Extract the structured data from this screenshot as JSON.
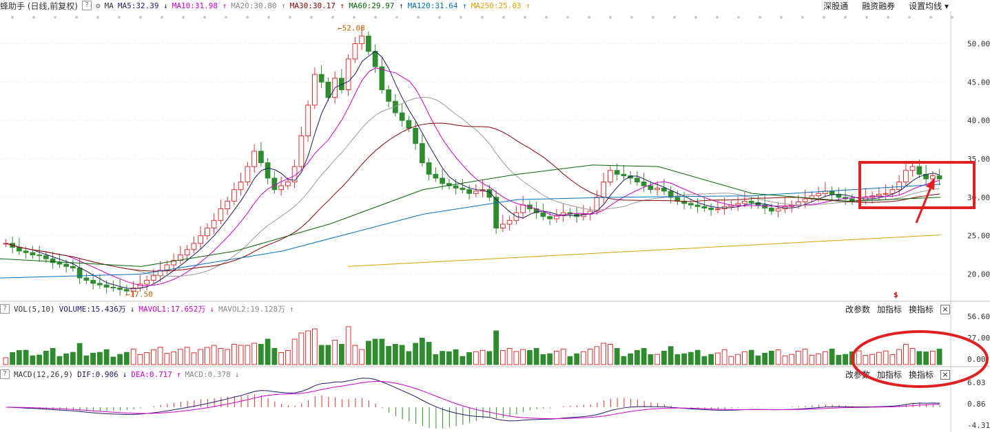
{
  "header": {
    "title": "蜂助手 (日线,前复权)",
    "help": "?",
    "ma_label": "MA",
    "ma_values": [
      {
        "label": "MA5:32.39",
        "arrow": "↓",
        "color": "#1a1a66"
      },
      {
        "label": "MA10:31.98",
        "arrow": "↑",
        "color": "#d000d0"
      },
      {
        "label": "MA20:30.80",
        "arrow": "↑",
        "color": "#888888"
      },
      {
        "label": "MA30:30.17",
        "arrow": "↑",
        "color": "#8b0000"
      },
      {
        "label": "MA60:29.97",
        "arrow": "↑",
        "color": "#006400"
      },
      {
        "label": "MA120:31.64",
        "arrow": "↑",
        "color": "#0070c0"
      },
      {
        "label": "MA250:25.03",
        "arrow": "↑",
        "color": "#e0a000"
      }
    ],
    "buttons": [
      "深股通",
      "融资融券",
      "设置均线 ▾"
    ]
  },
  "vol_panel": {
    "label": "VOL(5,10)",
    "volume": "VOLUME:15.436万",
    "mavol1": "MAVOL1:17.652万",
    "mavol2": "MAVOL2:19.128万",
    "arrow1": "↓",
    "arrow2": "↓",
    "arrow3": "↑",
    "buttons": [
      "改参数",
      "加指标",
      "换指标"
    ],
    "close": "×",
    "y_ticks": [
      "56.60",
      "27.00",
      "0.00"
    ]
  },
  "macd_panel": {
    "label": "MACD(12,26,9)",
    "dif": "DIF:0.906",
    "dea": "DEA:0.717",
    "macd": "MACD:0.378",
    "arrow1": "↓",
    "arrow2": "↑",
    "arrow3": "↓",
    "buttons": [
      "改参数",
      "加指标",
      "换指标"
    ],
    "close": "×",
    "y_ticks": [
      "6.03",
      "0.86",
      "-4.31"
    ]
  },
  "chart_data": {
    "type": "candlestick",
    "y_ticks": [
      "50.00",
      "45.00",
      "40.00",
      "35.00",
      "30.00",
      "25.00",
      "20.00"
    ],
    "ylim": [
      17,
      53
    ],
    "annotations": {
      "high": "52.08",
      "low": "17.50"
    },
    "marker": "$",
    "colors": {
      "up": "#e03030",
      "down": "#2e8b2e",
      "highlight": "#e02020"
    },
    "close_series": [
      24,
      23.5,
      23,
      22.8,
      22.5,
      22.4,
      22,
      21.5,
      21.3,
      21,
      20.8,
      19.5,
      19.2,
      18.8,
      18.6,
      18.3,
      18.2,
      18,
      17.8,
      18.2,
      18.7,
      19.2,
      19.8,
      20.5,
      21.2,
      21.8,
      22.5,
      23.2,
      24,
      25,
      26,
      27,
      28.5,
      29.5,
      31,
      32,
      34,
      36,
      34.5,
      32.5,
      31,
      31.5,
      32,
      34,
      38,
      42,
      46,
      45,
      43,
      45.5,
      44,
      48,
      50,
      51,
      49,
      47,
      44,
      42.5,
      41,
      40,
      39,
      37,
      34.5,
      33,
      32.5,
      31.8,
      31.5,
      31.2,
      31,
      30.5,
      30.8,
      31,
      30,
      26,
      26.5,
      27,
      28,
      29,
      28.5,
      28,
      27.5,
      27.2,
      27.6,
      28,
      27.8,
      27.5,
      27.8,
      28.2,
      30,
      32,
      33.5,
      33,
      32.8,
      32.5,
      32,
      31.5,
      31,
      31.2,
      30.8,
      30,
      29.5,
      29.2,
      29,
      28.8,
      28.6,
      28.4,
      28.5,
      28.8,
      29,
      29.2,
      29.5,
      29.3,
      29,
      28.6,
      28.2,
      28.5,
      28.8,
      29,
      29.4,
      29.8,
      30.2,
      30.5,
      30.8,
      30.4,
      30,
      29.8,
      29.5,
      29.6,
      30,
      30.2,
      30.4,
      30.5,
      31,
      32,
      33.5,
      34,
      33,
      32.4,
      32.8,
      32.4
    ],
    "ma_lines": [
      {
        "name": "MA250",
        "color": "#e0a000",
        "points": [
          [
            0.37,
            21
          ],
          [
            1,
            25.1
          ]
        ]
      },
      {
        "name": "MA120",
        "color": "#0070c0",
        "points": [
          [
            0,
            19.5
          ],
          [
            0.15,
            20
          ],
          [
            0.3,
            23
          ],
          [
            0.45,
            27.8
          ],
          [
            0.55,
            29.7
          ],
          [
            0.65,
            30
          ],
          [
            0.8,
            30.2
          ],
          [
            1,
            31.7
          ]
        ]
      },
      {
        "name": "MA60",
        "color": "#006400",
        "points": [
          [
            0,
            22
          ],
          [
            0.15,
            21
          ],
          [
            0.25,
            23
          ],
          [
            0.35,
            26.5
          ],
          [
            0.45,
            31
          ],
          [
            0.55,
            33
          ],
          [
            0.63,
            34.2
          ],
          [
            0.7,
            34
          ],
          [
            0.8,
            30.5
          ],
          [
            0.9,
            29.5
          ],
          [
            1,
            30
          ]
        ]
      }
    ]
  }
}
